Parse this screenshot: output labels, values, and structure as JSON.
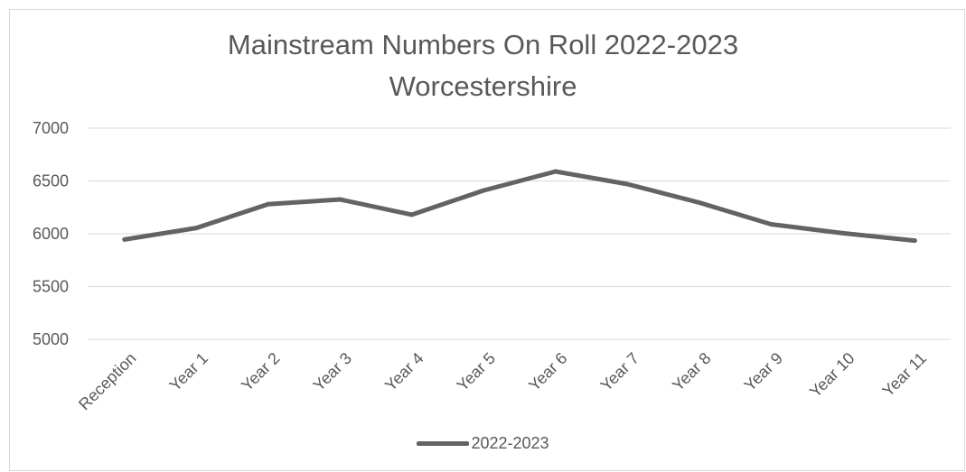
{
  "chart_data": {
    "type": "line",
    "title": "Mainstream Numbers On Roll 2022-2023",
    "subtitle": "Worcestershire",
    "xlabel": "",
    "ylabel": "",
    "categories": [
      "Reception",
      "Year 1",
      "Year 2",
      "Year 3",
      "Year 4",
      "Year 5",
      "Year 6",
      "Year 7",
      "Year 8",
      "Year 9",
      "Year 10",
      "Year 11"
    ],
    "series": [
      {
        "name": "2022-2023",
        "values": [
          5945,
          6055,
          6280,
          6325,
          6180,
          6410,
          6590,
          6470,
          6295,
          6090,
          6005,
          5935
        ],
        "color": "#636363"
      }
    ],
    "ylim": [
      5000,
      7000
    ],
    "yticks": [
      "5000",
      "5500",
      "6000",
      "6500",
      "7000"
    ],
    "grid": true,
    "legend_position": "bottom"
  }
}
